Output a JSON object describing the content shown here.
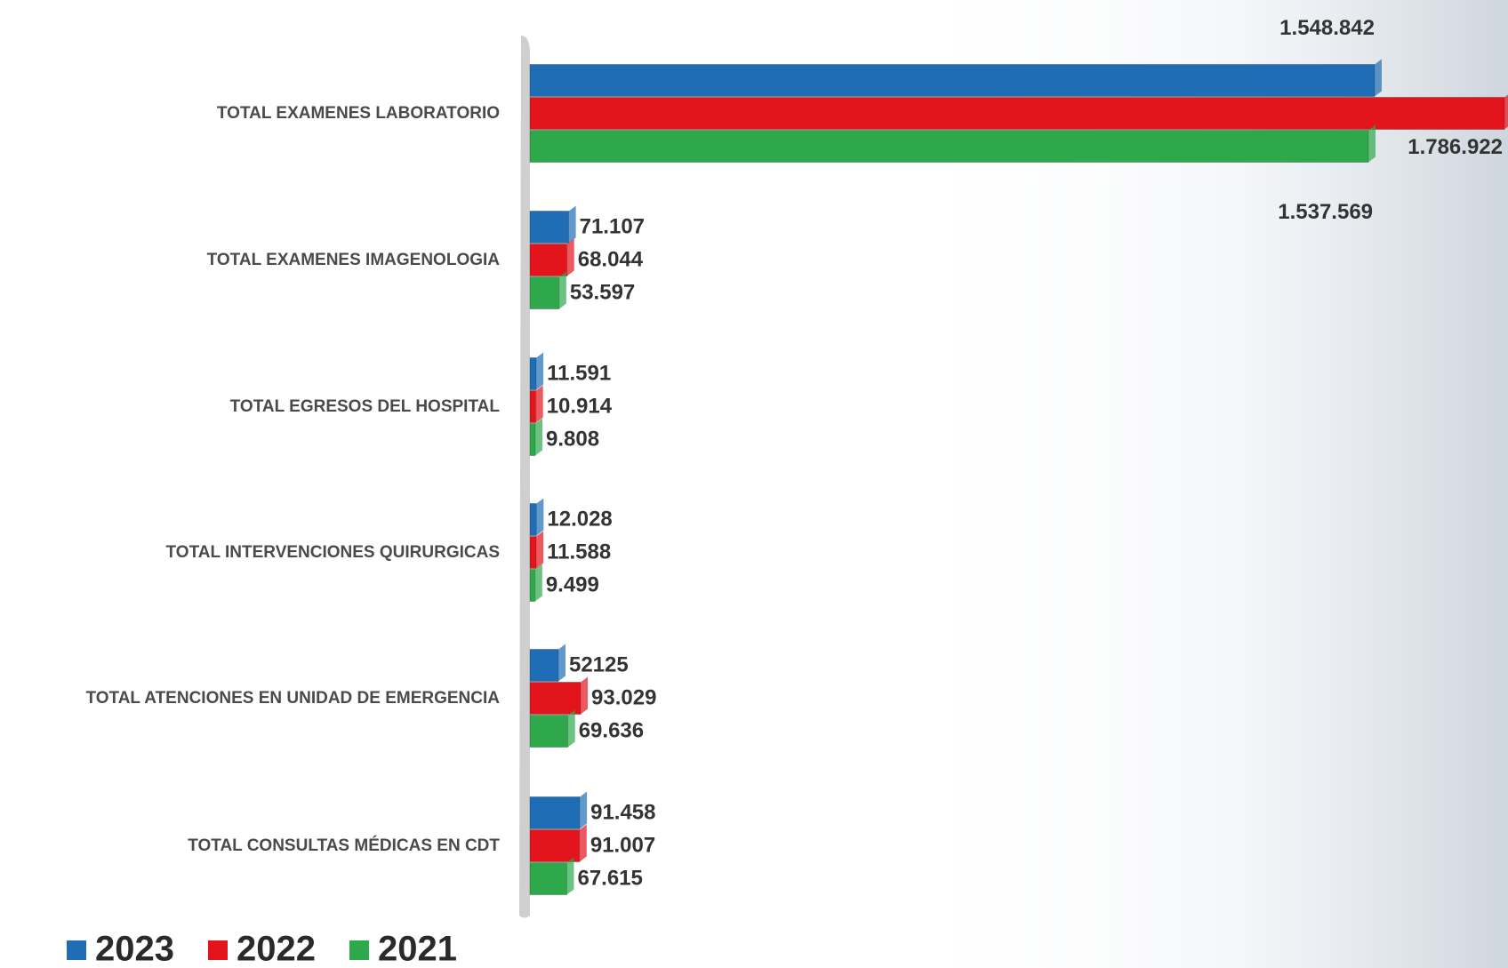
{
  "chart_data": {
    "type": "bar",
    "orientation": "horizontal",
    "categories": [
      "TOTAL EXAMENES LABORATORIO",
      "TOTAL EXAMENES IMAGENOLOGIA",
      "TOTAL EGRESOS DEL HOSPITAL",
      "TOTAL INTERVENCIONES QUIRURGICAS",
      "TOTAL ATENCIONES EN UNIDAD DE EMERGENCIA",
      "TOTAL CONSULTAS MÉDICAS EN CDT"
    ],
    "series": [
      {
        "name": "2023",
        "color": "#1f6db5",
        "values": [
          1548842,
          71107,
          11591,
          12028,
          52125,
          91458
        ],
        "value_labels": [
          "1.548.842",
          "71.107",
          "11.591",
          "12.028",
          "52125",
          "91.458"
        ]
      },
      {
        "name": "2022",
        "color": "#e3141c",
        "values": [
          1786922,
          68044,
          10914,
          11588,
          93029,
          91007
        ],
        "value_labels": [
          "1.786.922",
          "68.044",
          "10.914",
          "11.588",
          "93.029",
          "91.007"
        ]
      },
      {
        "name": "2021",
        "color": "#2ea84a",
        "values": [
          1537569,
          53597,
          9808,
          9499,
          69636,
          67615
        ],
        "value_labels": [
          "1.537.569",
          "53.597",
          "9.808",
          "9.499",
          "69.636",
          "67.615"
        ]
      }
    ],
    "xlim": [
      0,
      1800000
    ],
    "legend": "bottom-left"
  }
}
